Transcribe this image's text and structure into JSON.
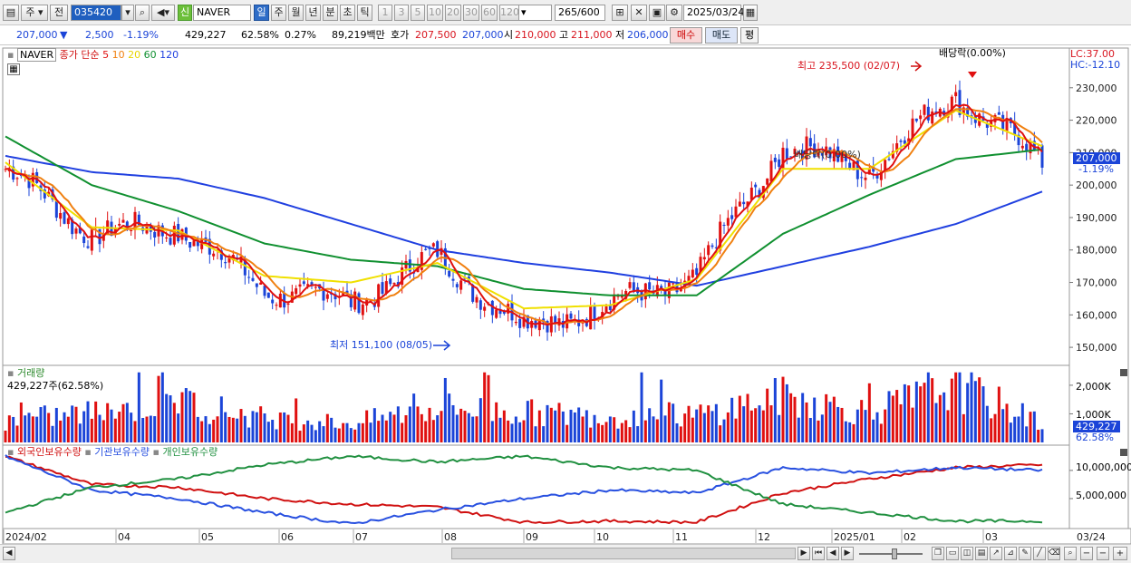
{
  "toolbar": {
    "market": "주",
    "prev_label": "전",
    "code": "035420",
    "credit_badge": "신",
    "name": "NAVER",
    "periods": [
      "일",
      "주",
      "월",
      "년",
      "분",
      "초",
      "틱"
    ],
    "intervals": [
      "1",
      "3",
      "5",
      "10",
      "20",
      "30",
      "60",
      "120"
    ],
    "count": "265",
    "count_max": "/600",
    "date": "2025/03/24"
  },
  "quote": {
    "price": "207,000",
    "change": "2,500",
    "change_pct": "-1.19%",
    "volume": "429,227",
    "volume_ratio": "62.58%",
    "turnover_pct": "0.27%",
    "amount": "89,219백만",
    "ask_label": "호가",
    "ask1": "207,500",
    "ask2": "207,000",
    "open_label": "시",
    "open": "210,000",
    "high_label": "고",
    "high": "211,000",
    "low_label": "저",
    "low": "206,000",
    "buy_label": "매수",
    "sell_label": "매도",
    "avg_label": "평"
  },
  "legend": {
    "name": "NAVER",
    "close_label": "종가 단순",
    "ma": [
      {
        "label": "5",
        "color": "#e01010"
      },
      {
        "label": "10",
        "color": "#f08010"
      },
      {
        "label": "20",
        "color": "#e8d400"
      },
      {
        "label": "60",
        "color": "#109030"
      },
      {
        "label": "120",
        "color": "#2040e0"
      }
    ]
  },
  "annotations": {
    "high_label": "최고 235,500 (02/07)",
    "low_label": "최저 151,100 (08/05)",
    "dividend_top": "배당락(0.00%)",
    "dividend_mid": "배당락(0.00%)",
    "lc": "LC:37.00",
    "hc": "HC:-12.10",
    "current_price": "207,000",
    "current_pct": "-1.19%"
  },
  "volume_panel": {
    "title": "거래량",
    "value": "429,227주(62.58%)",
    "axis": [
      "2,000K",
      "1,000K"
    ],
    "current": "429,227",
    "current_pct": "62.58%"
  },
  "holdings_panel": {
    "series": [
      {
        "name": "외국인보유수량",
        "color": "#d01010"
      },
      {
        "name": "기관보유수량",
        "color": "#2850e0"
      },
      {
        "name": "개인보유수량",
        "color": "#209040"
      }
    ],
    "axis": [
      "10,000,000",
      "5,000,000"
    ]
  },
  "x_axis": [
    "2024/02",
    "04",
    "05",
    "06",
    "07",
    "08",
    "09",
    "10",
    "11",
    "12",
    "2025/01",
    "02",
    "03",
    "03/24"
  ],
  "chart_data": {
    "type": "candlestick",
    "title": "NAVER",
    "ylim": [
      145000,
      240000
    ],
    "y_ticks": [
      150000,
      160000,
      170000,
      180000,
      190000,
      200000,
      210000,
      220000,
      230000
    ],
    "y_tick_labels": [
      "150,000",
      "160,000",
      "170,000",
      "180,000",
      "190,000",
      "200,000",
      "210,000",
      "220,000",
      "230,000"
    ],
    "x": [
      "2024/02",
      "04",
      "05",
      "06",
      "07",
      "08",
      "09",
      "10",
      "11",
      "12",
      "2025/01",
      "02",
      "03"
    ],
    "close": [
      205000,
      185000,
      187000,
      168000,
      164000,
      178000,
      156000,
      163000,
      172000,
      212000,
      205000,
      228000,
      207000
    ],
    "ma20": [
      207000,
      187000,
      186000,
      172000,
      170000,
      176000,
      162000,
      163000,
      171000,
      205000,
      205000,
      223000,
      212000
    ],
    "ma60": [
      215000,
      200000,
      192000,
      182000,
      177000,
      175000,
      168000,
      166000,
      166000,
      185000,
      197000,
      208000,
      211000
    ],
    "ma120": [
      209000,
      204000,
      202000,
      196000,
      188000,
      180000,
      176000,
      173000,
      169000,
      175000,
      181000,
      188000,
      198000
    ],
    "volume_series": [
      {
        "name": "거래량",
        "values": [
          800,
          1100,
          1500,
          900,
          700,
          1300,
          1100,
          950,
          1000,
          1700,
          1100,
          2100,
          700
        ]
      }
    ],
    "holdings": {
      "ylim": [
        0,
        14000000
      ],
      "series": [
        {
          "name": "외국인보유수량",
          "values": [
            12500000,
            7500000,
            7000000,
            5000000,
            4000000,
            3500000,
            800000,
            1000000,
            800000,
            6000000,
            8500000,
            10500000,
            11000000
          ]
        },
        {
          "name": "기관보유수량",
          "values": [
            12500000,
            6500000,
            5000000,
            2500000,
            500000,
            3000000,
            5000000,
            6500000,
            6000000,
            10500000,
            9500000,
            10500000,
            10000000
          ]
        },
        {
          "name": "개인보유수량",
          "values": [
            2500000,
            7000000,
            8500000,
            11000000,
            12500000,
            11500000,
            12500000,
            10500000,
            10000000,
            4000000,
            2500000,
            1000000,
            1000000
          ]
        }
      ]
    }
  }
}
